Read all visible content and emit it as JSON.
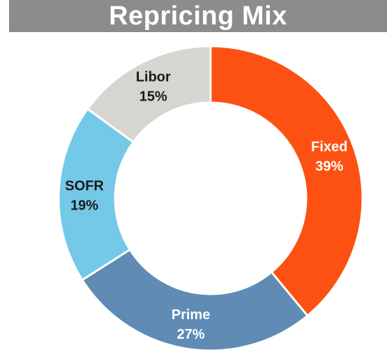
{
  "title": "Repricing Mix",
  "colors": {
    "title_bar": "#8c8c8c",
    "title_text": "#ffffff"
  },
  "chart_data": {
    "type": "pie",
    "variant": "donut",
    "title": "Repricing Mix",
    "slices": [
      {
        "label": "Fixed",
        "value": 39,
        "value_label": "39%",
        "color": "#fc5112",
        "text_color": "#ffffff"
      },
      {
        "label": "Prime",
        "value": 27,
        "value_label": "27%",
        "color": "#5f8bb5",
        "text_color": "#ffffff"
      },
      {
        "label": "SOFR",
        "value": 19,
        "value_label": "19%",
        "color": "#74c8e8",
        "text_color": "#1a1a1a"
      },
      {
        "label": "Libor",
        "value": 15,
        "value_label": "15%",
        "color": "#d6d5d0",
        "text_color": "#1a1a1a"
      }
    ],
    "start_angle_deg": 0,
    "direction": "clockwise",
    "legend": "none"
  }
}
